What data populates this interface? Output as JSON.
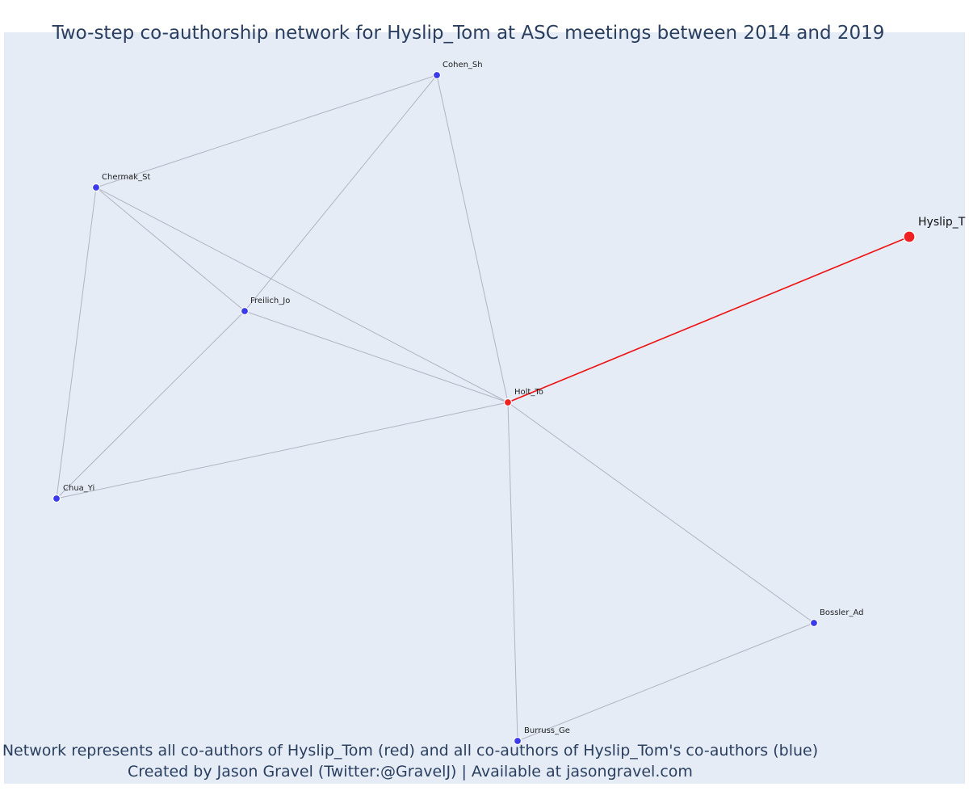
{
  "title": "Two-step co-authorship network for Hyslip_Tom at ASC meetings between 2014 and 2019",
  "footer": {
    "line1": "Network represents all co-authors of Hyslip_Tom (red) and all co-authors of Hyslip_Tom's co-authors (blue)",
    "line2": "Created by Jason Gravel (Twitter:@GravelJ) | Available at jasongravel.com"
  },
  "colors": {
    "plot_background": "#e5ecf6",
    "title_text": "#2a3f5f",
    "edge": "#b3b3c3",
    "highlight_edge": "#ee1111",
    "focal_and_coauthor_node": "#ee2222",
    "second_step_node": "#3b3bea"
  },
  "nodes": [
    {
      "id": "hyslip",
      "label": "Hyslip_T",
      "role": "focal"
    },
    {
      "id": "holt",
      "label": "Holt_To",
      "role": "coauthor"
    },
    {
      "id": "cohen",
      "label": "Cohen_Sh",
      "role": "second-step"
    },
    {
      "id": "chermak",
      "label": "Chermak_St",
      "role": "second-step"
    },
    {
      "id": "freilich",
      "label": "Freilich_Jo",
      "role": "second-step"
    },
    {
      "id": "chua",
      "label": "Chua_Yi",
      "role": "second-step"
    },
    {
      "id": "bossler",
      "label": "Bossler_Ad",
      "role": "second-step"
    },
    {
      "id": "burruss",
      "label": "Burruss_Ge",
      "role": "second-step"
    }
  ],
  "edges": [
    {
      "source": "hyslip",
      "target": "holt",
      "highlight": true
    },
    {
      "source": "holt",
      "target": "cohen"
    },
    {
      "source": "holt",
      "target": "chermak"
    },
    {
      "source": "holt",
      "target": "freilich"
    },
    {
      "source": "holt",
      "target": "chua"
    },
    {
      "source": "holt",
      "target": "bossler"
    },
    {
      "source": "holt",
      "target": "burruss"
    },
    {
      "source": "cohen",
      "target": "chermak"
    },
    {
      "source": "cohen",
      "target": "freilich"
    },
    {
      "source": "chermak",
      "target": "freilich"
    },
    {
      "source": "chermak",
      "target": "chua"
    },
    {
      "source": "freilich",
      "target": "chua"
    },
    {
      "source": "bossler",
      "target": "burruss"
    }
  ]
}
